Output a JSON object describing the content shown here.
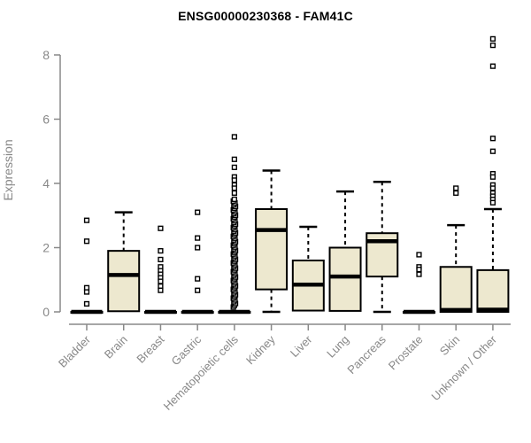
{
  "colors": {
    "background": "#ffffff",
    "axis": "#888888",
    "tick_label": "#888888",
    "title": "#000000",
    "box_fill": "#ede8cf",
    "box_border": "#000000",
    "median": "#000000",
    "outlier_fill": "#ffffff"
  },
  "chart_data": {
    "type": "box",
    "title": "ENSG00000230368 - FAM41C",
    "ylabel": "Expression",
    "xlabel": "",
    "yticks": [
      0,
      2,
      4,
      6,
      8
    ],
    "ylim": [
      0,
      8.7
    ],
    "grid": false,
    "categories": [
      "Bladder",
      "Brain",
      "Breast",
      "Gastric",
      "Hematopoietic cells",
      "Kidney",
      "Liver",
      "Lung",
      "Pancreas",
      "Prostate",
      "Skin",
      "Unknown / Other"
    ],
    "series": [
      {
        "name": "Bladder",
        "whisker_low": 0,
        "q1": 0,
        "median": 0,
        "q3": 0,
        "whisker_high": 0,
        "outliers": [
          2.85,
          2.2,
          0.75,
          0.62,
          0.25
        ]
      },
      {
        "name": "Brain",
        "whisker_low": 0.02,
        "q1": 0.02,
        "median": 1.15,
        "q3": 1.9,
        "whisker_high": 3.1,
        "outliers": []
      },
      {
        "name": "Breast",
        "whisker_low": 0,
        "q1": 0,
        "median": 0,
        "q3": 0,
        "whisker_high": 0,
        "outliers": [
          2.6,
          1.9,
          1.63,
          1.4,
          1.28,
          1.17,
          1.06,
          0.95,
          0.8,
          0.67
        ]
      },
      {
        "name": "Gastric",
        "whisker_low": 0,
        "q1": 0,
        "median": 0,
        "q3": 0,
        "whisker_high": 0,
        "outliers": [
          3.1,
          2.3,
          2.0,
          1.03,
          0.67
        ]
      },
      {
        "name": "Hematopoietic cells",
        "whisker_low": 0,
        "q1": 0,
        "median": 0,
        "q3": 0,
        "whisker_high": 0,
        "outliers": [
          5.45,
          4.75,
          4.5,
          4.2,
          4.1,
          3.95,
          3.85,
          3.7
        ],
        "outliers_dense": {
          "from": 0.15,
          "to": 3.55,
          "step": 0.055
        }
      },
      {
        "name": "Kidney",
        "whisker_low": 0,
        "q1": 0.7,
        "median": 2.55,
        "q3": 3.2,
        "whisker_high": 4.4,
        "outliers": []
      },
      {
        "name": "Liver",
        "whisker_low": 0.04,
        "q1": 0.04,
        "median": 0.85,
        "q3": 1.6,
        "whisker_high": 2.65,
        "outliers": []
      },
      {
        "name": "Lung",
        "whisker_low": 0.03,
        "q1": 0.03,
        "median": 1.1,
        "q3": 2.0,
        "whisker_high": 3.75,
        "outliers": []
      },
      {
        "name": "Pancreas",
        "whisker_low": 0,
        "q1": 1.1,
        "median": 2.2,
        "q3": 2.45,
        "whisker_high": 4.05,
        "outliers": []
      },
      {
        "name": "Prostate",
        "whisker_low": 0,
        "q1": 0,
        "median": 0,
        "q3": 0,
        "whisker_high": 0,
        "outliers": [
          1.78,
          1.4,
          1.32,
          1.17
        ]
      },
      {
        "name": "Skin",
        "whisker_low": 0,
        "q1": 0,
        "median": 0.06,
        "q3": 1.4,
        "whisker_high": 2.7,
        "outliers": [
          3.85,
          3.7
        ]
      },
      {
        "name": "Unknown / Other",
        "whisker_low": 0,
        "q1": 0,
        "median": 0.07,
        "q3": 1.3,
        "whisker_high": 3.2,
        "outliers": [
          8.5,
          8.3,
          7.65,
          5.4,
          5.0,
          4.3,
          4.2,
          3.95,
          3.85,
          3.7,
          3.6,
          3.5,
          3.4
        ]
      }
    ]
  }
}
